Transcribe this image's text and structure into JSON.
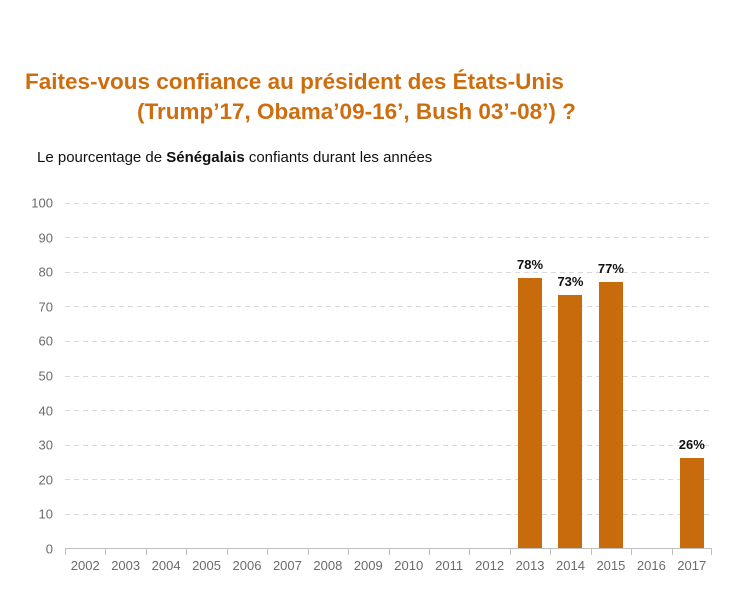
{
  "header": {
    "title_line1": "Faites-vous confiance au président des États-Unis",
    "title_line2": "(Trump’17, Obama’09-16’, Bush 03’-08’) ?",
    "title_color": "#CE6D0E"
  },
  "subtitle": {
    "prefix": "Le pourcentage de ",
    "bold": "Sénégalais",
    "suffix": " confiants durant les années"
  },
  "chart_data": {
    "type": "bar",
    "title": "Faites-vous confiance au président des États-Unis (Trump’17, Obama’09-16’, Bush 03’-08’) ?",
    "subtitle": "Le pourcentage de Sénégalais confiants durant les années",
    "categories": [
      "2002",
      "2003",
      "2004",
      "2005",
      "2006",
      "2007",
      "2008",
      "2009",
      "2010",
      "2011",
      "2012",
      "2013",
      "2014",
      "2015",
      "2016",
      "2017"
    ],
    "values": [
      null,
      null,
      null,
      null,
      null,
      null,
      null,
      null,
      null,
      null,
      null,
      78,
      73,
      77,
      null,
      26
    ],
    "bar_labels": [
      "",
      "",
      "",
      "",
      "",
      "",
      "",
      "",
      "",
      "",
      "",
      "78%",
      "73%",
      "77%",
      "",
      "26%"
    ],
    "xlabel": "",
    "ylabel": "",
    "ylim": [
      0,
      100
    ],
    "yticks": [
      0,
      10,
      20,
      30,
      40,
      50,
      60,
      70,
      80,
      90,
      100
    ],
    "grid": "horizontal-dashed",
    "legend": "none",
    "colors": {
      "bar": "#C76B0D",
      "value_label": "#101010",
      "grid": "#D9D9D9",
      "axis": "#BFBFBF",
      "tick_label": "#6B6B6B"
    }
  }
}
